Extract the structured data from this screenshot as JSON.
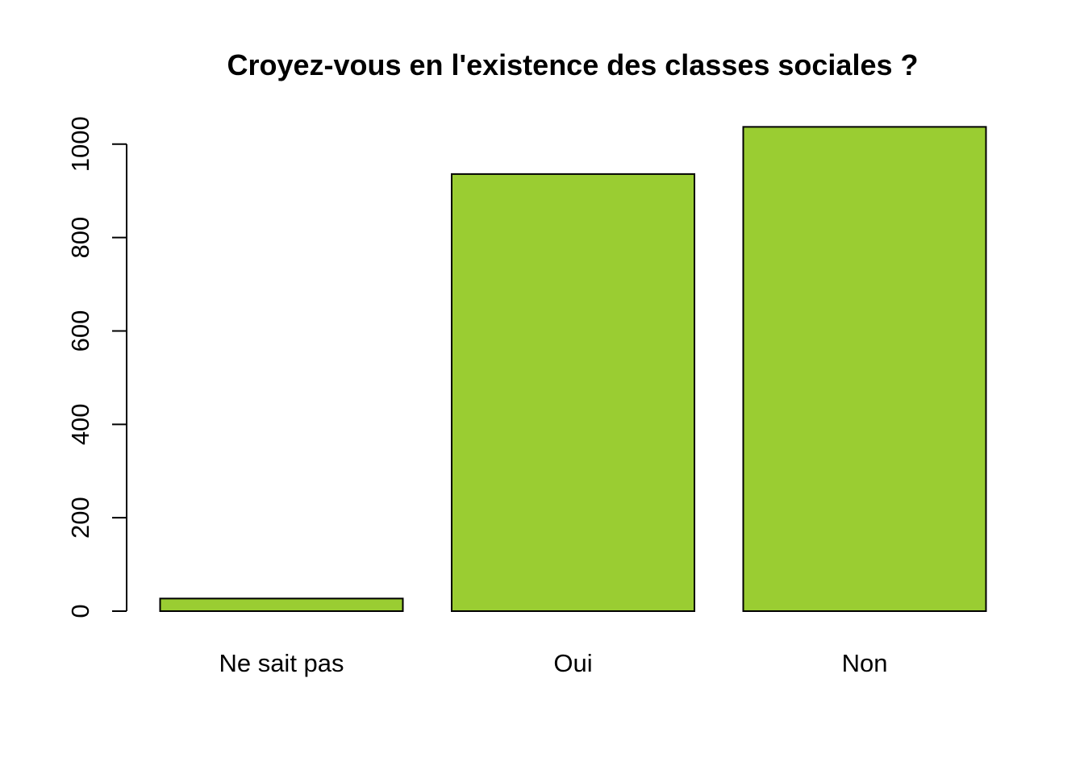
{
  "chart_data": {
    "type": "bar",
    "title": "Croyez-vous en l'existence des classes sociales ?",
    "xlabel": "",
    "ylabel": "",
    "categories": [
      "Ne sait pas",
      "Oui",
      "Non"
    ],
    "values": [
      27,
      936,
      1037
    ],
    "ylim": [
      0,
      1037
    ],
    "yticks": [
      0,
      200,
      400,
      600,
      800,
      1000
    ],
    "ytick_labels": [
      "0",
      "200",
      "400",
      "600",
      "800",
      "1000"
    ],
    "bar_color": "#9acd32",
    "grid": false,
    "legend": "none"
  }
}
